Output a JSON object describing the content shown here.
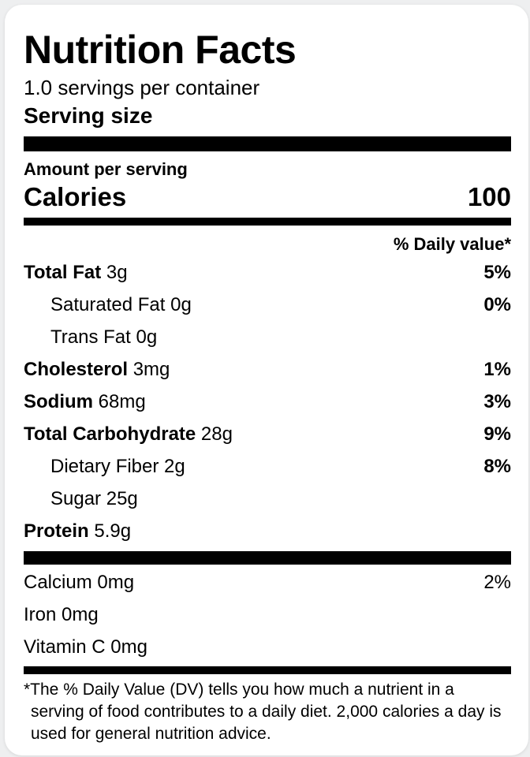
{
  "header": {
    "title": "Nutrition Facts",
    "servings_per_container": "1.0 servings per container",
    "serving_size_label": "Serving size"
  },
  "calories_section": {
    "amount_per_serving_label": "Amount per serving",
    "calories_label": "Calories",
    "calories_value": "100"
  },
  "daily_value_header": "% Daily value*",
  "nutrients": [
    {
      "label": "Total Fat",
      "amount": "3g",
      "percent": "5%"
    },
    {
      "label": "Saturated Fat",
      "amount": "0g",
      "percent": "0%"
    },
    {
      "label": "Trans Fat",
      "amount": "0g",
      "percent": ""
    },
    {
      "label": "Cholesterol",
      "amount": "3mg",
      "percent": "1%"
    },
    {
      "label": "Sodium",
      "amount": "68mg",
      "percent": "3%"
    },
    {
      "label": "Total Carbohydrate",
      "amount": "28g",
      "percent": "9%"
    },
    {
      "label": "Dietary Fiber",
      "amount": "2g",
      "percent": "8%"
    },
    {
      "label": "Sugar",
      "amount": "25g",
      "percent": ""
    },
    {
      "label": "Protein",
      "amount": "5.9g",
      "percent": ""
    }
  ],
  "micronutrients": [
    {
      "label": "Calcium",
      "amount": "0mg",
      "percent": "2%"
    },
    {
      "label": "Iron",
      "amount": "0mg",
      "percent": ""
    },
    {
      "label": "Vitamin C",
      "amount": "0mg",
      "percent": ""
    }
  ],
  "footnote": "*The % Daily Value (DV) tells you how much a nutrient in a serving of food contributes to a daily diet. 2,000 calories a day is used for general nutrition advice.",
  "colors": {
    "bar": "#000000",
    "card_background": "#ffffff",
    "page_background": "#eeeff0"
  }
}
